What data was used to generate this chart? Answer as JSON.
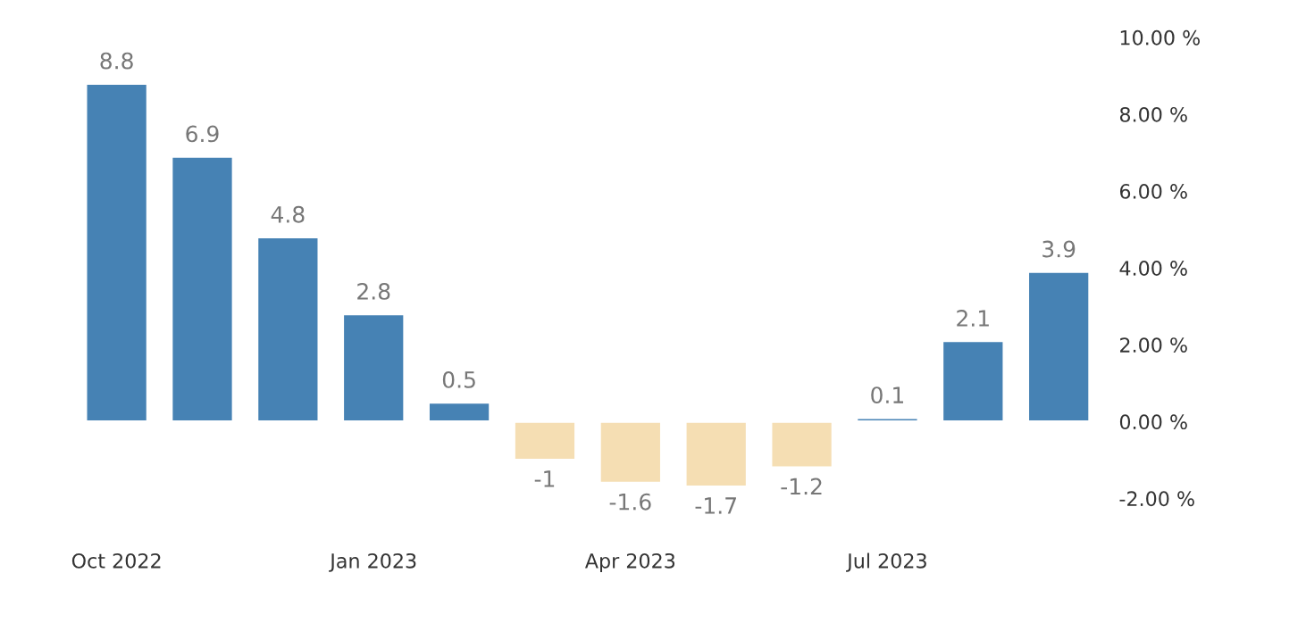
{
  "chart_data": {
    "type": "bar",
    "categories": [
      "Oct 2022",
      null,
      null,
      "Jan 2023",
      null,
      null,
      "Apr 2023",
      null,
      null,
      "Jul 2023",
      null,
      null
    ],
    "values": [
      8.8,
      6.9,
      4.8,
      2.8,
      0.5,
      -1,
      -1.6,
      -1.7,
      -1.2,
      0.1,
      2.1,
      3.9
    ],
    "colors": [
      "#4682b4",
      "#4682b4",
      "#4682b4",
      "#4682b4",
      "#4682b4",
      "#f5deb3",
      "#f5deb3",
      "#f5deb3",
      "#f5deb3",
      "#4682b4",
      "#4682b4",
      "#4682b4"
    ],
    "data_labels": true,
    "ylim": [
      -2,
      10
    ],
    "yticks": [
      {
        "value": -2,
        "label": "-2.00 %"
      },
      {
        "value": 0,
        "label": "0.00 %"
      },
      {
        "value": 2,
        "label": "2.00 %"
      },
      {
        "value": 4,
        "label": "4.00 %"
      },
      {
        "value": 6,
        "label": "6.00 %"
      },
      {
        "value": 8,
        "label": "8.00 %"
      },
      {
        "value": 10,
        "label": "10.00 %"
      }
    ],
    "grid": false,
    "legend": false
  }
}
